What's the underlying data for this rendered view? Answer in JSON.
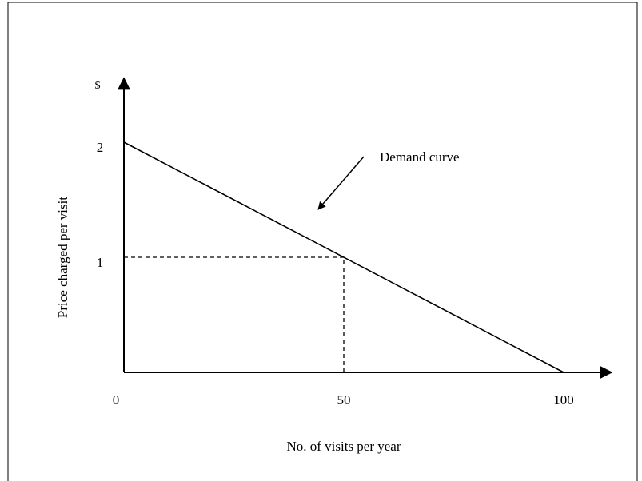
{
  "chart_data": {
    "type": "line",
    "y_unit": "$",
    "xlabel": "No. of  visits per year",
    "ylabel": "Price charged per visit",
    "annotation": "Demand curve",
    "x": [
      0,
      100
    ],
    "values": [
      2,
      0
    ],
    "color": "#000000",
    "reference_point": {
      "x": 50,
      "y": 1
    },
    "xlim": [
      0,
      110
    ],
    "xticks": [
      0,
      50,
      100
    ],
    "ylim": [
      0,
      2.5
    ],
    "yticks": [
      1,
      2
    ],
    "grid": false
  }
}
